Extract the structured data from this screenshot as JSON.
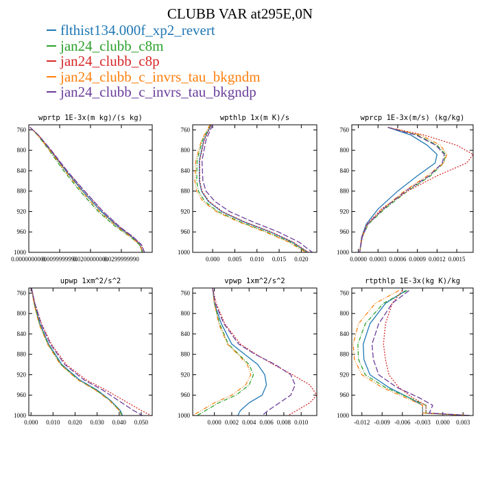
{
  "title": "CLUBB VAR at295E,0N",
  "legend": [
    {
      "label": "flthist134.000f_xp2_revert",
      "color": "#1f77b4",
      "dash": ""
    },
    {
      "label": "jan24_clubb_c8m",
      "color": "#2ca02c",
      "dash": "6,2,1,2"
    },
    {
      "label": "jan24_clubb_c8p",
      "color": "#d62728",
      "dash": "2,2"
    },
    {
      "label": "jan24_clubb_c_invrs_tau_bkgndm",
      "color": "#ff7f0e",
      "dash": "6,2,1,2,1,2"
    },
    {
      "label": "jan24_clubb_c_invrs_tau_bkgndp",
      "color": "#6a3d9a",
      "dash": "8,3"
    }
  ],
  "chart_data": [
    {
      "type": "line",
      "title": "wprtp  1E-3x(m kg)/(s kg)",
      "xlabel": "",
      "ylabel": "",
      "xlim": [
        0,
        0.04
      ],
      "ylim": [
        1000,
        750
      ],
      "y_inverted": true,
      "xticks": [
        0,
        0.01,
        0.02,
        0.03
      ],
      "xtick_labels": [
        "0.0000000000",
        "0.0099999998",
        "0.0200000000",
        "0.0299999990"
      ],
      "yticks": [
        760,
        800,
        840,
        880,
        920,
        960,
        1000
      ],
      "series": [
        {
          "x": [
            0.0004,
            0.003,
            0.007,
            0.012,
            0.0175,
            0.0235,
            0.029,
            0.0335,
            0.036,
            0.037
          ],
          "y": [
            755,
            770,
            800,
            840,
            880,
            920,
            950,
            970,
            985,
            1000
          ]
        },
        {
          "x": [
            0.0004,
            0.0028,
            0.0066,
            0.0113,
            0.0166,
            0.0225,
            0.0282,
            0.033,
            0.0358,
            0.0368
          ],
          "y": [
            755,
            770,
            800,
            840,
            880,
            920,
            950,
            970,
            985,
            1000
          ]
        },
        {
          "x": [
            0.0004,
            0.0031,
            0.0072,
            0.0123,
            0.018,
            0.024,
            0.0294,
            0.0338,
            0.0364,
            0.0374
          ],
          "y": [
            755,
            770,
            800,
            840,
            880,
            920,
            950,
            970,
            985,
            1000
          ]
        },
        {
          "x": [
            0.0004,
            0.0029,
            0.0068,
            0.0117,
            0.0171,
            0.023,
            0.0286,
            0.0332,
            0.0359,
            0.0369
          ],
          "y": [
            755,
            770,
            800,
            840,
            880,
            920,
            950,
            970,
            985,
            1000
          ]
        },
        {
          "x": [
            0.0004,
            0.0031,
            0.0073,
            0.0124,
            0.0181,
            0.0241,
            0.0295,
            0.0339,
            0.0365,
            0.0375
          ],
          "y": [
            755,
            770,
            800,
            840,
            880,
            920,
            950,
            970,
            985,
            1000
          ]
        }
      ]
    },
    {
      "type": "line",
      "title": "wpthlp  1x(m K)/s",
      "xlabel": "",
      "ylabel": "",
      "xlim": [
        -0.0045,
        0.0235
      ],
      "ylim": [
        1000,
        750
      ],
      "y_inverted": true,
      "xticks": [
        0,
        0.005,
        0.01,
        0.015,
        0.02
      ],
      "xtick_labels": [
        "0.000",
        "0.005",
        "0.010",
        "0.015",
        "0.020"
      ],
      "yticks": [
        760,
        800,
        840,
        880,
        920,
        960,
        1000
      ],
      "series": [
        {
          "x": [
            -0.0003,
            -0.002,
            -0.003,
            -0.003,
            -0.0025,
            -0.001,
            0.002,
            0.007,
            0.013,
            0.018,
            0.0215
          ],
          "y": [
            750,
            780,
            820,
            860,
            880,
            900,
            920,
            940,
            960,
            980,
            1000
          ]
        },
        {
          "x": [
            -0.0005,
            -0.0023,
            -0.0035,
            -0.0036,
            -0.0032,
            -0.0018,
            0.0012,
            0.0062,
            0.0122,
            0.0175,
            0.0212
          ],
          "y": [
            750,
            780,
            820,
            860,
            880,
            900,
            920,
            940,
            960,
            980,
            1000
          ]
        },
        {
          "x": [
            -0.0003,
            -0.0019,
            -0.0029,
            -0.0029,
            -0.0024,
            -0.0008,
            0.0022,
            0.0072,
            0.0132,
            0.0182,
            0.0216
          ],
          "y": [
            750,
            780,
            820,
            860,
            880,
            900,
            920,
            940,
            960,
            980,
            1000
          ]
        },
        {
          "x": [
            -0.0006,
            -0.0025,
            -0.0038,
            -0.004,
            -0.0036,
            -0.0022,
            0.0008,
            0.0058,
            0.0118,
            0.0172,
            0.021
          ],
          "y": [
            750,
            780,
            820,
            860,
            880,
            900,
            920,
            940,
            960,
            980,
            1000
          ]
        },
        {
          "x": [
            0.0,
            -0.0015,
            -0.0024,
            -0.0022,
            -0.0015,
            0.0005,
            0.0038,
            0.009,
            0.0148,
            0.0195,
            0.0225
          ],
          "y": [
            750,
            780,
            820,
            860,
            880,
            900,
            920,
            940,
            960,
            980,
            1000
          ]
        }
      ]
    },
    {
      "type": "line",
      "title": "wprcp  1E-3x(m/s) (kg/kg)",
      "xlabel": "",
      "ylabel": "",
      "xlim": [
        -0.0001,
        0.00175
      ],
      "ylim": [
        1000,
        750
      ],
      "y_inverted": true,
      "xticks": [
        0,
        0.0003,
        0.0006,
        0.0009,
        0.0012,
        0.0015
      ],
      "xtick_labels": [
        "0.0000",
        "0.0003",
        "0.0006",
        "0.0009",
        "0.0012",
        "0.0015"
      ],
      "yticks": [
        760,
        800,
        840,
        880,
        920,
        960,
        1000
      ],
      "series": [
        {
          "x": [
            0.00045,
            0.0008,
            0.00105,
            0.0012,
            0.00117,
            0.0009,
            0.0006,
            0.0003,
            0.00012,
            5e-05,
            2e-05
          ],
          "y": [
            755,
            770,
            790,
            808,
            825,
            850,
            880,
            915,
            945,
            970,
            1000
          ]
        },
        {
          "x": [
            0.00045,
            0.0009,
            0.0012,
            0.00133,
            0.0013,
            0.0011,
            0.00075,
            0.0004,
            0.00015,
            6e-05,
            2e-05
          ],
          "y": [
            755,
            770,
            790,
            808,
            825,
            850,
            880,
            915,
            945,
            970,
            1000
          ]
        },
        {
          "x": [
            0.00045,
            0.001,
            0.0015,
            0.00175,
            0.00165,
            0.0012,
            0.00075,
            0.00035,
            0.00013,
            5e-05,
            2e-05
          ],
          "y": [
            755,
            770,
            790,
            808,
            825,
            850,
            880,
            915,
            945,
            970,
            1000
          ]
        },
        {
          "x": [
            0.00045,
            0.00095,
            0.00125,
            0.00135,
            0.0013,
            0.00105,
            0.0007,
            0.00037,
            0.00014,
            6e-05,
            2e-05
          ],
          "y": [
            755,
            770,
            790,
            808,
            825,
            850,
            880,
            915,
            945,
            970,
            1000
          ]
        },
        {
          "x": [
            0.00045,
            0.00088,
            0.00118,
            0.00131,
            0.00128,
            0.00108,
            0.00072,
            0.00038,
            0.00014,
            6e-05,
            2e-05
          ],
          "y": [
            755,
            770,
            790,
            808,
            825,
            850,
            880,
            915,
            945,
            970,
            1000
          ]
        }
      ]
    },
    {
      "type": "line",
      "title": "upwp  1xm^2/s^2",
      "xlabel": "",
      "ylabel": "",
      "xlim": [
        -0.001,
        0.055
      ],
      "ylim": [
        1000,
        750
      ],
      "y_inverted": true,
      "xticks": [
        0,
        0.01,
        0.02,
        0.03,
        0.04,
        0.05
      ],
      "xtick_labels": [
        "0.000",
        "0.010",
        "0.020",
        "0.030",
        "0.040",
        "0.050"
      ],
      "yticks": [
        760,
        800,
        840,
        880,
        920,
        960,
        1000
      ],
      "series": [
        {
          "x": [
            0.0002,
            0.0015,
            0.004,
            0.008,
            0.014,
            0.022,
            0.03,
            0.036,
            0.0405,
            0.0415
          ],
          "y": [
            750,
            780,
            820,
            860,
            900,
            930,
            950,
            970,
            990,
            1000
          ]
        },
        {
          "x": [
            0.0002,
            0.0014,
            0.0038,
            0.0077,
            0.0136,
            0.0215,
            0.0295,
            0.0357,
            0.0402,
            0.0412
          ],
          "y": [
            750,
            780,
            820,
            860,
            900,
            930,
            950,
            970,
            990,
            1000
          ]
        },
        {
          "x": [
            0.0002,
            0.0018,
            0.0048,
            0.0092,
            0.016,
            0.025,
            0.034,
            0.042,
            0.05,
            0.0545
          ],
          "y": [
            750,
            780,
            820,
            860,
            900,
            930,
            950,
            970,
            990,
            1000
          ]
        },
        {
          "x": [
            0.0002,
            0.0013,
            0.0036,
            0.0075,
            0.0133,
            0.0212,
            0.0292,
            0.0355,
            0.04,
            0.041
          ],
          "y": [
            750,
            780,
            820,
            860,
            900,
            930,
            950,
            970,
            990,
            1000
          ]
        },
        {
          "x": [
            0.0002,
            0.0017,
            0.0045,
            0.0088,
            0.0153,
            0.024,
            0.0325,
            0.0395,
            0.0465,
            0.0505
          ],
          "y": [
            750,
            780,
            820,
            860,
            900,
            930,
            950,
            970,
            990,
            1000
          ]
        }
      ]
    },
    {
      "type": "line",
      "title": "vpwp  1xm^2/s^2",
      "xlabel": "",
      "ylabel": "",
      "xlim": [
        -0.0025,
        0.0118
      ],
      "ylim": [
        1000,
        750
      ],
      "y_inverted": true,
      "xticks": [
        0,
        0.002,
        0.004,
        0.006,
        0.008,
        0.01
      ],
      "xtick_labels": [
        "0.000",
        "0.002",
        "0.004",
        "0.006",
        "0.008",
        "0.010"
      ],
      "yticks": [
        760,
        800,
        840,
        880,
        920,
        960,
        1000
      ],
      "series": [
        {
          "x": [
            -0.0002,
            0.0,
            0.0008,
            0.002,
            0.0035,
            0.005,
            0.0058,
            0.006,
            0.0055,
            0.004,
            0.003,
            0.0027
          ],
          "y": [
            750,
            780,
            820,
            860,
            880,
            900,
            920,
            940,
            960,
            975,
            990,
            1000
          ]
        },
        {
          "x": [
            -0.0002,
            0.0,
            0.0006,
            0.0016,
            0.0028,
            0.004,
            0.0045,
            0.004,
            0.0025,
            0.0005,
            -0.001,
            -0.002
          ],
          "y": [
            750,
            780,
            820,
            860,
            880,
            900,
            920,
            940,
            960,
            975,
            990,
            1000
          ]
        },
        {
          "x": [
            -0.0002,
            0.0002,
            0.0012,
            0.003,
            0.0048,
            0.0068,
            0.009,
            0.011,
            0.0118,
            0.011,
            0.0095,
            0.0085
          ],
          "y": [
            750,
            780,
            820,
            860,
            880,
            900,
            920,
            940,
            960,
            975,
            990,
            1000
          ]
        },
        {
          "x": [
            -0.0002,
            0.0,
            0.0005,
            0.0015,
            0.0027,
            0.0038,
            0.0042,
            0.0036,
            0.002,
            0.0,
            -0.0015,
            -0.0025
          ],
          "y": [
            750,
            780,
            820,
            860,
            880,
            900,
            920,
            940,
            960,
            975,
            990,
            1000
          ]
        },
        {
          "x": [
            -0.0002,
            0.0001,
            0.0011,
            0.0028,
            0.0047,
            0.007,
            0.0088,
            0.0093,
            0.0088,
            0.0075,
            0.0062,
            0.0055
          ],
          "y": [
            750,
            780,
            820,
            860,
            880,
            900,
            920,
            940,
            960,
            975,
            990,
            1000
          ]
        }
      ]
    },
    {
      "type": "line",
      "title": "rtpthlp  1E-3x(kg K)/kg",
      "xlabel": "",
      "ylabel": "",
      "xlim": [
        -0.0135,
        0.0045
      ],
      "ylim": [
        1000,
        750
      ],
      "y_inverted": true,
      "xticks": [
        -0.012,
        -0.009,
        -0.006,
        -0.003,
        0,
        0.003
      ],
      "xtick_labels": [
        "-0.012",
        "-0.009",
        "-0.006",
        "-0.003",
        "0.000",
        "0.003"
      ],
      "yticks": [
        760,
        800,
        840,
        880,
        920,
        960,
        1000
      ],
      "series": [
        {
          "x": [
            -0.0055,
            -0.0085,
            -0.0108,
            -0.0118,
            -0.0117,
            -0.0108,
            -0.008,
            -0.005,
            -0.003,
            -0.003,
            0.004
          ],
          "y": [
            755,
            780,
            820,
            860,
            890,
            920,
            945,
            965,
            980,
            995,
            1000
          ]
        },
        {
          "x": [
            -0.0053,
            -0.0088,
            -0.0115,
            -0.0126,
            -0.0125,
            -0.0115,
            -0.0085,
            -0.005,
            -0.0025,
            -0.0025,
            0.004
          ],
          "y": [
            755,
            780,
            820,
            860,
            890,
            920,
            945,
            965,
            980,
            995,
            1000
          ]
        },
        {
          "x": [
            -0.006,
            -0.0075,
            -0.0085,
            -0.0088,
            -0.0085,
            -0.008,
            -0.0065,
            -0.0045,
            -0.0025,
            -0.0025,
            0.004
          ],
          "y": [
            755,
            780,
            820,
            860,
            890,
            920,
            945,
            965,
            980,
            995,
            1000
          ]
        },
        {
          "x": [
            -0.0065,
            -0.01,
            -0.0125,
            -0.0133,
            -0.0131,
            -0.012,
            -0.009,
            -0.0055,
            -0.003,
            -0.003,
            0.004
          ],
          "y": [
            755,
            780,
            820,
            860,
            890,
            920,
            945,
            965,
            980,
            995,
            1000
          ]
        },
        {
          "x": [
            -0.005,
            -0.0075,
            -0.0095,
            -0.0105,
            -0.0103,
            -0.0095,
            -0.0068,
            -0.0035,
            -0.0015,
            -0.002,
            0.004
          ],
          "y": [
            755,
            780,
            820,
            860,
            890,
            920,
            945,
            965,
            980,
            995,
            1000
          ]
        }
      ]
    }
  ]
}
